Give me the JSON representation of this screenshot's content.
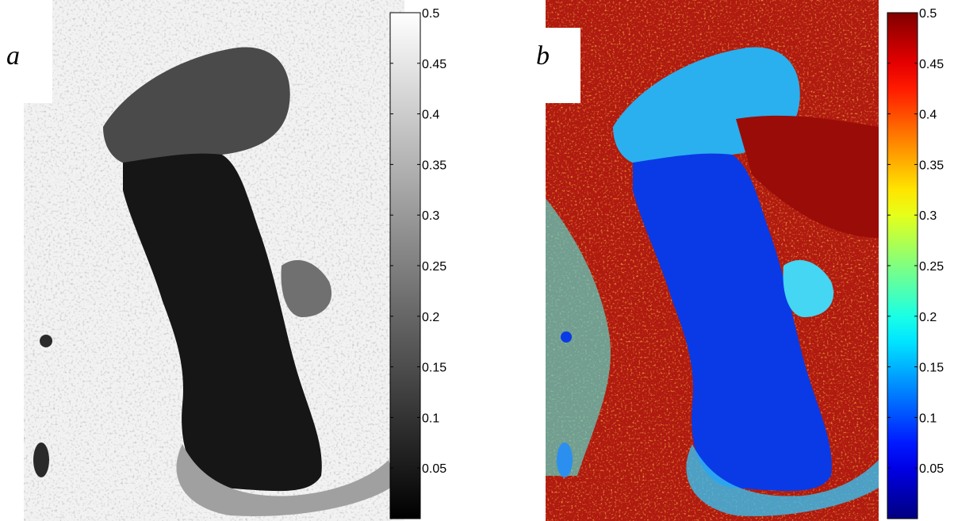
{
  "panels": [
    {
      "label": "a",
      "colormap": "gray",
      "colorbar": {
        "min": 0.0,
        "max": 0.5,
        "ticks": [
          "0.5",
          "0.45",
          "0.4",
          "0.35",
          "0.3",
          "0.25",
          "0.2",
          "0.15",
          "0.1",
          "0.05"
        ],
        "tick_values": [
          0.5,
          0.45,
          0.4,
          0.35,
          0.3,
          0.25,
          0.2,
          0.15,
          0.1,
          0.05
        ]
      },
      "colors": {
        "land": "#f4f4f4",
        "sea": "#141414",
        "north_sea": "#3c3c3c",
        "bay": "#6e6e6e",
        "coast": "#9a9a9a"
      }
    },
    {
      "label": "b",
      "colormap": "jet",
      "colorbar": {
        "min": 0.0,
        "max": 0.5,
        "ticks": [
          "0.5",
          "0.45",
          "0.4",
          "0.35",
          "0.3",
          "0.25",
          "0.2",
          "0.15",
          "0.1",
          "0.05"
        ],
        "tick_values": [
          0.5,
          0.45,
          0.4,
          0.35,
          0.3,
          0.25,
          0.2,
          0.15,
          0.1,
          0.05
        ]
      },
      "colors": {
        "land": "#b21a0f",
        "land2": "#e2431c",
        "sea": "#0b3de8",
        "north_sea": "#22b8f0",
        "bay": "#3ad6f4",
        "coast": "#54e4b4"
      }
    }
  ]
}
